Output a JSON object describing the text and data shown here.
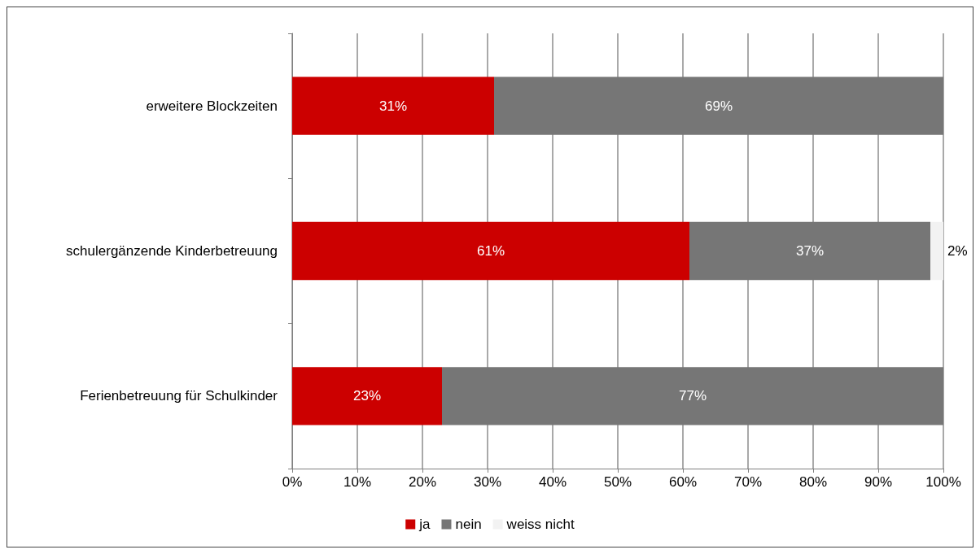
{
  "chart_data": {
    "type": "bar",
    "orientation": "horizontal",
    "stacked": true,
    "categories": [
      "erweitere Blockzeiten",
      "schulergänzende Kinderbetreuung",
      "Ferienbetreuung für Schulkinder"
    ],
    "series": [
      {
        "name": "ja",
        "color": "#cc0000",
        "values": [
          31,
          61,
          23
        ],
        "value_labels": [
          "31%",
          "61%",
          "23%"
        ]
      },
      {
        "name": "nein",
        "color": "#767676",
        "values": [
          69,
          37,
          77
        ],
        "value_labels": [
          "69%",
          "37%",
          "77%"
        ]
      },
      {
        "name": "weiss nicht",
        "color": "#f2f2f2",
        "values": [
          null,
          2,
          null
        ],
        "value_labels": [
          null,
          "2%",
          null
        ]
      }
    ],
    "xlim": [
      0,
      100
    ],
    "xticks": [
      {
        "value": 0,
        "label": "0%"
      },
      {
        "value": 10,
        "label": "10%"
      },
      {
        "value": 20,
        "label": "20%"
      },
      {
        "value": 30,
        "label": "30%"
      },
      {
        "value": 40,
        "label": "40%"
      },
      {
        "value": 50,
        "label": "50%"
      },
      {
        "value": 60,
        "label": "60%"
      },
      {
        "value": 70,
        "label": "70%"
      },
      {
        "value": 80,
        "label": "80%"
      },
      {
        "value": 90,
        "label": "90%"
      },
      {
        "value": 100,
        "label": "100%"
      }
    ],
    "grid": "x",
    "legend": "bottom"
  }
}
